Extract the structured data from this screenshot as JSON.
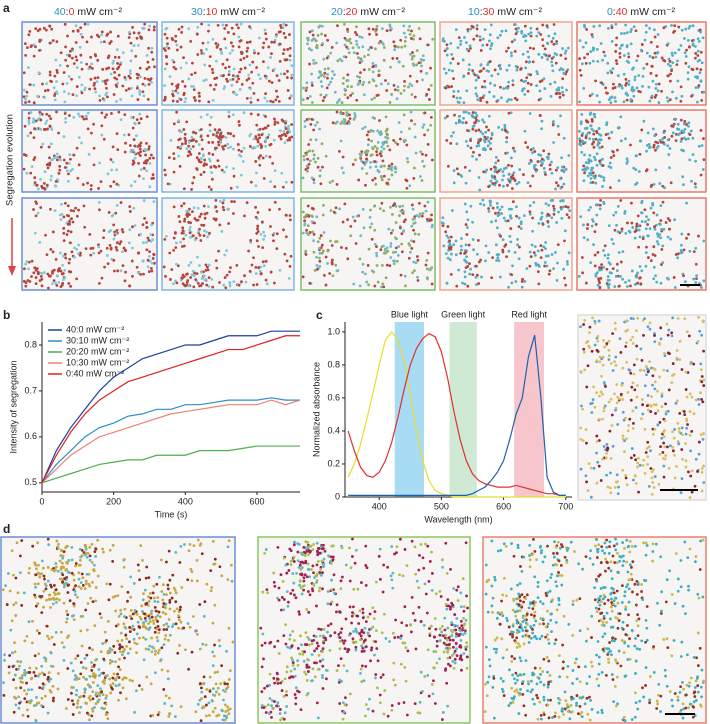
{
  "panel_labels": [
    "a",
    "b",
    "c",
    "d"
  ],
  "column_headers": [
    [
      "40",
      ":",
      "0",
      "mW cm⁻²"
    ],
    [
      "30",
      ":",
      "10",
      "mW cm⁻²"
    ],
    [
      "20",
      ":",
      "20",
      "mW cm⁻²"
    ],
    [
      "10",
      ":",
      "30",
      "mW cm⁻²"
    ],
    [
      "0",
      ":",
      "40",
      "mW cm⁻²"
    ]
  ],
  "row_axis_label": "Segregation evolution",
  "chart_data": [
    {
      "type": "line",
      "xlabel": "Time (s)",
      "ylabel": "Intensity of segregation",
      "legend": "upper left",
      "x": [
        0,
        40,
        80,
        120,
        160,
        200,
        240,
        280,
        320,
        360,
        400,
        440,
        480,
        520,
        560,
        600,
        640,
        680,
        720
      ],
      "xlim": [
        0,
        720
      ],
      "xticks": [
        0,
        200,
        400,
        600
      ],
      "ylim": [
        0.48,
        0.85
      ],
      "yticks": [
        0.5,
        0.6,
        0.7,
        0.8
      ],
      "series": [
        {
          "name": "40:0 mW cm⁻²",
          "color": "#1f3f9a",
          "values": [
            0.5,
            0.57,
            0.62,
            0.66,
            0.7,
            0.73,
            0.75,
            0.77,
            0.78,
            0.79,
            0.8,
            0.8,
            0.81,
            0.82,
            0.82,
            0.82,
            0.83,
            0.83,
            0.83
          ]
        },
        {
          "name": "30:10 mW cm⁻²",
          "color": "#2a8fc8",
          "values": [
            0.5,
            0.54,
            0.57,
            0.6,
            0.62,
            0.63,
            0.645,
            0.65,
            0.66,
            0.66,
            0.67,
            0.67,
            0.675,
            0.68,
            0.68,
            0.68,
            0.685,
            0.68,
            0.68
          ]
        },
        {
          "name": "20:20 mW cm⁻²",
          "color": "#4caf50",
          "values": [
            0.5,
            0.51,
            0.52,
            0.53,
            0.54,
            0.545,
            0.55,
            0.55,
            0.56,
            0.56,
            0.56,
            0.57,
            0.57,
            0.57,
            0.575,
            0.58,
            0.58,
            0.58,
            0.58
          ]
        },
        {
          "name": "10:30 mW cm⁻²",
          "color": "#f08070",
          "values": [
            0.5,
            0.53,
            0.56,
            0.58,
            0.6,
            0.61,
            0.62,
            0.63,
            0.64,
            0.65,
            0.655,
            0.66,
            0.665,
            0.67,
            0.67,
            0.67,
            0.68,
            0.67,
            0.68
          ]
        },
        {
          "name": "0:40 mW cm⁻²",
          "color": "#e02020",
          "values": [
            0.5,
            0.56,
            0.61,
            0.65,
            0.68,
            0.7,
            0.72,
            0.73,
            0.74,
            0.75,
            0.76,
            0.77,
            0.78,
            0.79,
            0.79,
            0.8,
            0.81,
            0.82,
            0.82
          ]
        }
      ]
    },
    {
      "type": "line",
      "xlabel": "Wavelength (nm)",
      "ylabel": "Normalized absorbance",
      "x": [
        350,
        360,
        370,
        380,
        390,
        400,
        410,
        420,
        430,
        440,
        450,
        460,
        470,
        480,
        490,
        500,
        510,
        520,
        530,
        540,
        550,
        560,
        570,
        580,
        590,
        600,
        610,
        620,
        630,
        640,
        650,
        660,
        670,
        680,
        690,
        700
      ],
      "xlim": [
        345,
        710
      ],
      "xticks": [
        400,
        500,
        600,
        700
      ],
      "ylim": [
        0,
        1.06
      ],
      "yticks": [
        0,
        0.2,
        0.4,
        0.6,
        0.8,
        {
          "value": 1,
          "label": "1.0"
        }
      ],
      "bands": [
        {
          "name": "Blue light",
          "range": [
            425,
            472
          ],
          "color": "#a8dcf4"
        },
        {
          "name": "Green light",
          "range": [
            513,
            557
          ],
          "color": "#cfe9d4"
        },
        {
          "name": "Red light",
          "range": [
            617,
            665
          ],
          "color": "#f7c6cc"
        }
      ],
      "series": [
        {
          "color": "#e8dc30",
          "values": [
            0.12,
            0.2,
            0.32,
            0.47,
            0.63,
            0.8,
            0.95,
            1.0,
            0.95,
            0.82,
            0.62,
            0.4,
            0.22,
            0.1,
            0.04,
            0.02,
            0.01,
            0,
            0,
            0,
            0,
            0,
            0,
            0,
            0,
            0,
            0,
            0,
            0,
            0,
            0,
            0,
            0,
            0,
            0,
            0
          ]
        },
        {
          "color": "#e03030",
          "values": [
            0.4,
            0.28,
            0.18,
            0.13,
            0.12,
            0.15,
            0.22,
            0.33,
            0.48,
            0.65,
            0.8,
            0.9,
            0.96,
            0.99,
            0.97,
            0.88,
            0.72,
            0.52,
            0.35,
            0.22,
            0.14,
            0.1,
            0.08,
            0.07,
            0.06,
            0.06,
            0.06,
            0.07,
            0.06,
            0.05,
            0.04,
            0.03,
            0.02,
            0.02,
            0.01,
            0.01
          ]
        },
        {
          "color": "#1f5fb0",
          "values": [
            0.01,
            0.01,
            0.01,
            0.01,
            0.01,
            0.01,
            0.01,
            0.01,
            0.01,
            0.01,
            0.01,
            0.01,
            0.01,
            0.01,
            0.01,
            0.01,
            0.01,
            0.01,
            0.01,
            0.01,
            0.02,
            0.04,
            0.06,
            0.1,
            0.15,
            0.22,
            0.35,
            0.5,
            0.6,
            0.85,
            0.98,
            0.6,
            0.12,
            0.03,
            0.01,
            0.01
          ]
        }
      ]
    }
  ]
}
